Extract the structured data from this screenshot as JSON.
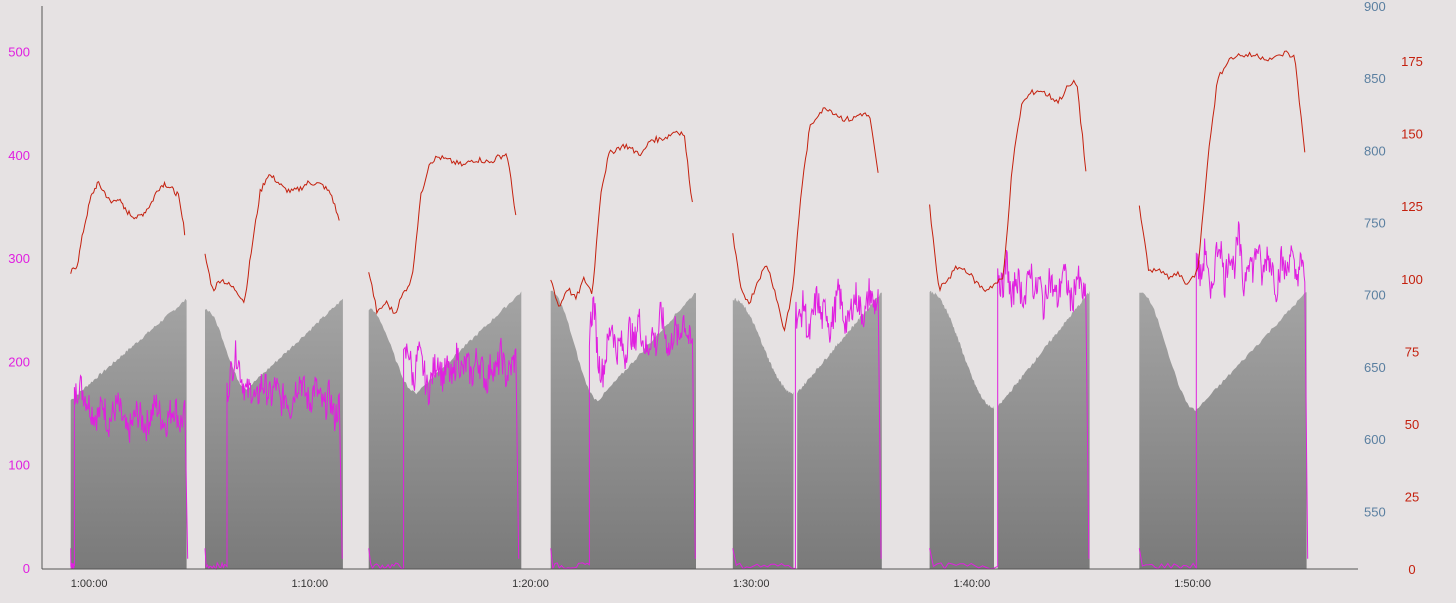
{
  "colors": {
    "background": "#e6e2e3",
    "power": "#e020e0",
    "heart_rate": "#c4200e",
    "elevation_fill_top": "#a4a4a4",
    "elevation_fill_bottom": "#7a7a7a",
    "axis": "#555555"
  },
  "chart_data": {
    "type": "line",
    "title": "",
    "xlabel": "",
    "x_unit": "elapsed time (h:mm:ss)",
    "x_ticks": [
      "1:00:00",
      "1:10:00",
      "1:20:00",
      "1:30:00",
      "1:40:00",
      "1:50:00"
    ],
    "xlim": [
      "0:58:30",
      "1:55:30"
    ],
    "y_axes": {
      "left": {
        "ticks": [
          0,
          100,
          200,
          300,
          400,
          500
        ],
        "range": [
          0,
          545
        ],
        "color": "#e020e0"
      },
      "right_outer": {
        "ticks": [
          550,
          600,
          650,
          700,
          750,
          800,
          850,
          900
        ],
        "range": [
          510,
          900
        ],
        "color": "#5a7fa0"
      },
      "right_inner": {
        "ticks": [
          0,
          25,
          50,
          75,
          100,
          125,
          150,
          175
        ],
        "range": [
          0,
          194
        ],
        "color": "#c4200e"
      }
    },
    "grid": false,
    "legend": "none",
    "intervals": [
      {
        "elevation": {
          "start": "0:59:10",
          "end": "1:04:25",
          "min_at": "0:59:10",
          "start_value": 627,
          "min_value": 627,
          "end_value": 697
        },
        "power_active": {
          "start": "0:59:20",
          "end": "1:04:20"
        },
        "power": [
          165,
          180,
          170,
          160,
          150,
          148,
          162,
          140,
          150,
          160,
          145,
          130,
          140,
          152,
          145,
          138,
          150,
          160,
          148,
          140,
          152,
          158,
          140,
          150
        ],
        "heart_rate": [
          102,
          105,
          118,
          128,
          133,
          130,
          126,
          128,
          124,
          122,
          121,
          123,
          126,
          131,
          133,
          131,
          129,
          116
        ]
      },
      {
        "elevation": {
          "start": "1:05:15",
          "end": "1:11:30",
          "min_at": "1:07:10",
          "start_value": 690,
          "min_value": 635,
          "end_value": 697
        },
        "power_active": {
          "start": "1:06:15",
          "end": "1:11:20"
        },
        "power": [
          170,
          195,
          210,
          185,
          170,
          175,
          160,
          180,
          175,
          165,
          180,
          160,
          170,
          155,
          175,
          185,
          170,
          160,
          178,
          165,
          155,
          170,
          145,
          160
        ],
        "heart_rate": [
          108,
          96,
          100,
          98,
          96,
          92,
          112,
          130,
          136,
          134,
          131,
          130,
          131,
          133,
          133,
          132,
          129,
          120
        ]
      },
      {
        "elevation": {
          "start": "1:12:40",
          "end": "1:19:35",
          "min_at": "1:14:50",
          "start_value": 690,
          "min_value": 632,
          "end_value": 702
        },
        "power_active": {
          "start": "1:14:15",
          "end": "1:19:20"
        },
        "power": [
          200,
          215,
          180,
          210,
          195,
          170,
          190,
          205,
          185,
          195,
          180,
          210,
          190,
          200,
          185,
          205,
          195,
          180,
          200,
          190,
          210,
          185,
          195,
          205
        ],
        "heart_rate": [
          103,
          88,
          92,
          88,
          95,
          100,
          128,
          140,
          142,
          141,
          140,
          139,
          141,
          141,
          140,
          142,
          143,
          122
        ]
      },
      {
        "elevation": {
          "start": "1:20:55",
          "end": "1:27:30",
          "min_at": "1:23:05",
          "start_value": 702,
          "min_value": 627,
          "end_value": 702
        },
        "power_active": {
          "start": "1:22:40",
          "end": "1:27:20"
        },
        "power": [
          230,
          260,
          200,
          190,
          215,
          240,
          210,
          220,
          205,
          235,
          215,
          245,
          220,
          210,
          230,
          215,
          250,
          225,
          210,
          235,
          220,
          245,
          225,
          215
        ],
        "heart_rate": [
          100,
          90,
          97,
          93,
          100,
          95,
          130,
          143,
          145,
          146,
          144,
          143,
          148,
          148,
          149,
          151,
          150,
          126
        ]
      },
      {
        "elevation": {
          "start": "1:29:10",
          "end": "1:31:55",
          "min_at": "1:31:55",
          "start_value": 697,
          "min_value": 632,
          "end_value": 632
        },
        "power_active": {
          "start": "1:32:00",
          "end": "1:35:45"
        },
        "power": [
          250,
          240,
          260,
          220,
          245,
          265,
          240,
          255,
          230,
          250,
          270,
          245,
          235,
          255,
          265,
          250,
          245,
          270,
          255,
          260
        ],
        "heart_rate": [
          115,
          95,
          92,
          100,
          105,
          95,
          82,
          96,
          130,
          152,
          157,
          159,
          157,
          155,
          155,
          157,
          156,
          136
        ]
      },
      {
        "elevation": {
          "start": "1:32:05",
          "end": "1:35:55",
          "min_at": "1:32:05",
          "start_value": 632,
          "min_value": 632,
          "end_value": 702
        },
        "power_active": {
          "start": "1:32:00",
          "end": "1:35:45"
        },
        "power": [
          255
        ],
        "heart_rate": [
          136
        ]
      },
      {
        "elevation": {
          "start": "1:38:05",
          "end": "1:41:00",
          "min_at": "1:41:00",
          "start_value": 702,
          "min_value": 622,
          "end_value": 622
        },
        "power_active": {
          "start": "1:41:10",
          "end": "1:45:10"
        },
        "power": [
          290,
          270,
          300,
          255,
          285,
          270,
          260,
          295,
          265,
          280,
          250,
          285,
          270,
          260,
          290,
          275,
          255,
          285,
          270,
          260
        ],
        "heart_rate": [
          125,
          96,
          100,
          104,
          103,
          99,
          96,
          98,
          100,
          139,
          160,
          164,
          165,
          163,
          161,
          166,
          168,
          137
        ]
      },
      {
        "elevation": {
          "start": "1:41:10",
          "end": "1:45:20",
          "min_at": "1:41:10",
          "start_value": 622,
          "min_value": 622,
          "end_value": 702
        },
        "power_active": {
          "start": "1:41:10",
          "end": "1:45:10"
        },
        "power": [
          270
        ],
        "heart_rate": [
          137
        ]
      },
      {
        "elevation": {
          "start": "1:47:35",
          "end": "1:55:10",
          "min_at": "1:50:10",
          "start_value": 702,
          "min_value": 620,
          "end_value": 702
        },
        "power_active": {
          "start": "1:50:10",
          "end": "1:55:05"
        },
        "power": [
          300,
          280,
          315,
          255,
          300,
          320,
          275,
          310,
          290,
          325,
          270,
          305,
          290,
          315,
          280,
          305,
          295,
          270,
          300,
          285,
          310,
          280,
          295,
          285
        ],
        "heart_rate": [
          125,
          102,
          104,
          100,
          102,
          98,
          103,
          140,
          168,
          175,
          177,
          177,
          177,
          176,
          176,
          178,
          176,
          143
        ]
      }
    ]
  }
}
